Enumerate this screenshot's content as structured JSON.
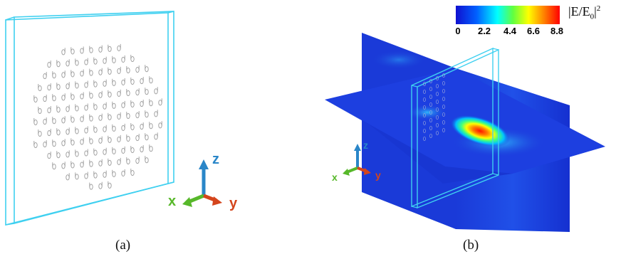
{
  "captions": {
    "a": "(a)",
    "b": "(b)"
  },
  "axes_a": {
    "x": "x",
    "y": "y",
    "z": "z"
  },
  "axes_b": {
    "x": "x",
    "y": "y",
    "z": "z"
  },
  "colorbar": {
    "ticks": [
      "0",
      "2.2",
      "4.4",
      "6.6",
      "8.8"
    ],
    "label_main": "|E/E",
    "label_sub": "0",
    "label_close": "|",
    "label_sup": "2",
    "colors": [
      "#1010d0",
      "#0060ff",
      "#00ffff",
      "#60ff40",
      "#ffff00",
      "#ff8000",
      "#ff0000"
    ]
  },
  "colors": {
    "frame": "#3fd0f0",
    "axis_x": "#57b82a",
    "axis_y": "#d4451c",
    "axis_z": "#2a86c8",
    "field_base": "#1a33d6"
  }
}
